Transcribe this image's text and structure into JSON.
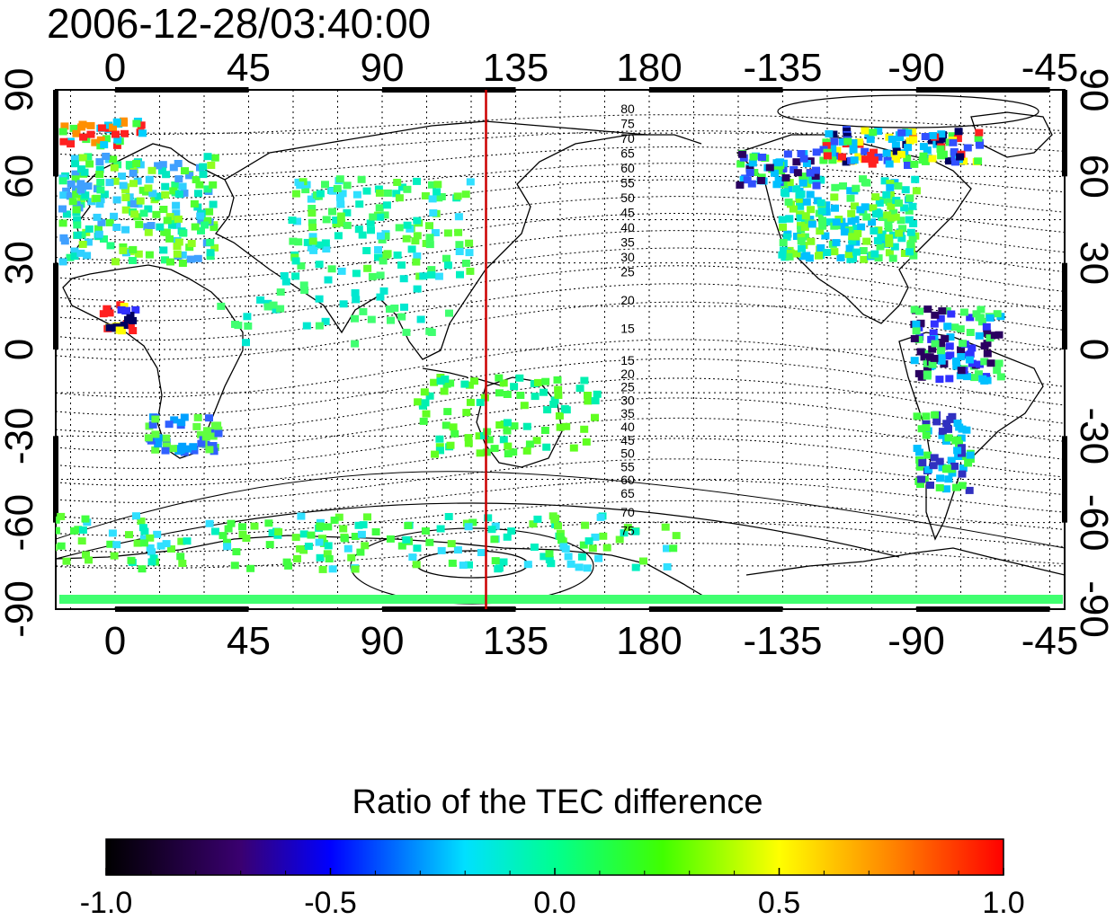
{
  "timestamp": "2006-12-28/03:40:00",
  "map": {
    "top_lon_ticks": [
      "0",
      "45",
      "90",
      "135",
      "180",
      "-135",
      "-90",
      "-45"
    ],
    "bottom_lon_ticks": [
      "0",
      "45",
      "90",
      "135",
      "180",
      "-135",
      "-90",
      "-45"
    ],
    "lat_ticks": [
      "90",
      "60",
      "30",
      "0",
      "-30",
      "-60",
      "-90"
    ],
    "lon_range": [
      -20,
      320
    ],
    "lat_range": [
      -90,
      90
    ],
    "red_meridian_lon": 125,
    "grid": "dotted",
    "mag_contour_labels_north": [
      "80",
      "75",
      "70",
      "65",
      "60",
      "55",
      "50",
      "45",
      "40",
      "35",
      "30",
      "25",
      "20",
      "15"
    ],
    "mag_contour_labels_south": [
      "15",
      "20",
      "25",
      "30",
      "35",
      "40",
      "45",
      "50",
      "55",
      "60",
      "65",
      "70",
      "75"
    ]
  },
  "colorbar": {
    "title": "Ratio of the TEC difference",
    "ticks": [
      "-1.0",
      "-0.5",
      "0.0",
      "0.5",
      "1.0"
    ],
    "range": [
      -1.0,
      1.0
    ],
    "colors": [
      "#000000",
      "#3a0070",
      "#0000ff",
      "#00c8ff",
      "#00ff80",
      "#60ff00",
      "#ffff00",
      "#ff8000",
      "#ff0000"
    ]
  },
  "colors": {
    "red_meridian": "#cc0000",
    "contour": "#000000",
    "coast": "#000000"
  }
}
